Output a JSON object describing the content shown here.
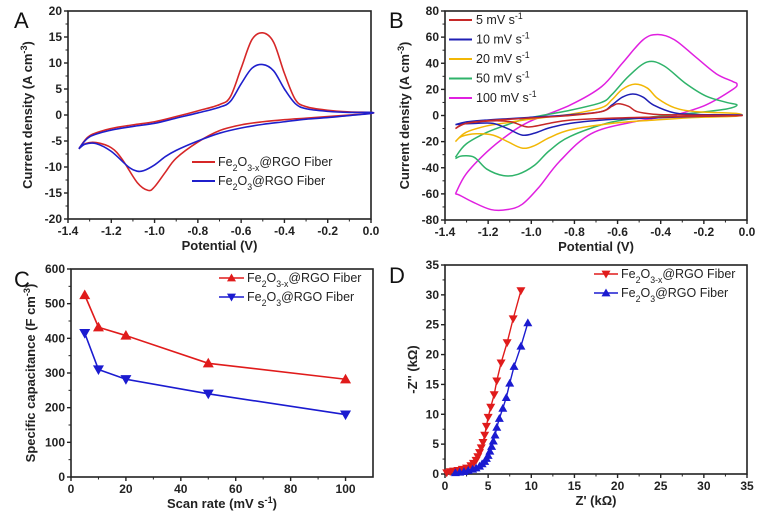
{
  "chart_data": [
    {
      "panel": "A",
      "type": "line",
      "title": "",
      "xlabel": "Potential (V)",
      "ylabel": "Current density (A cm^-3)",
      "xlim": [
        -1.4,
        0.0
      ],
      "ylim": [
        -20,
        20
      ],
      "xticks": [
        -1.4,
        -1.2,
        -1.0,
        -0.8,
        -0.6,
        -0.4,
        -0.2,
        0.0
      ],
      "xtick_labels": [
        "-1.4",
        "-1.2",
        "-1.0",
        "-0.8",
        "-0.6",
        "-0.4",
        "-0.2",
        "0.0"
      ],
      "yticks": [
        -20,
        -15,
        -10,
        -5,
        0,
        5,
        10,
        15,
        20
      ],
      "ytick_labels": [
        "-20",
        "-15",
        "-10",
        "-5",
        "0",
        "5",
        "10",
        "15",
        "20"
      ],
      "legend": "right-middle",
      "series": [
        {
          "name": "Fe2O3-x@RGO Fiber",
          "color": "#d62728",
          "anodic": {
            "x": [
              -1.35,
              -1.3,
              -1.2,
              -1.1,
              -1.0,
              -0.9,
              -0.8,
              -0.7,
              -0.65,
              -0.6,
              -0.55,
              -0.5,
              -0.45,
              -0.4,
              -0.35,
              -0.3,
              -0.2,
              -0.1,
              0.0
            ],
            "y": [
              -6.5,
              -4.0,
              -2.6,
              -1.9,
              -1.3,
              -0.3,
              0.8,
              2.0,
              3.5,
              9.0,
              14.5,
              15.8,
              14.0,
              8.0,
              3.0,
              1.6,
              0.9,
              0.6,
              0.5
            ]
          },
          "cathodic": {
            "x": [
              0.0,
              -0.1,
              -0.2,
              -0.3,
              -0.4,
              -0.5,
              -0.6,
              -0.7,
              -0.8,
              -0.9,
              -0.95,
              -1.0,
              -1.03,
              -1.08,
              -1.15,
              -1.2,
              -1.27,
              -1.32,
              -1.35
            ],
            "y": [
              0.3,
              0.0,
              -0.3,
              -0.6,
              -0.9,
              -1.3,
              -1.9,
              -3.0,
              -5.2,
              -8.3,
              -11.0,
              -13.8,
              -14.5,
              -13.0,
              -8.5,
              -6.3,
              -5.3,
              -5.5,
              -6.5
            ]
          }
        },
        {
          "name": "Fe2O3@RGO Fiber",
          "color": "#1f1fcc",
          "anodic": {
            "x": [
              -1.35,
              -1.3,
              -1.2,
              -1.1,
              -1.0,
              -0.9,
              -0.8,
              -0.7,
              -0.65,
              -0.6,
              -0.55,
              -0.5,
              -0.45,
              -0.4,
              -0.35,
              -0.3,
              -0.2,
              -0.1,
              0.0
            ],
            "y": [
              -6.5,
              -4.2,
              -2.9,
              -2.2,
              -1.6,
              -0.6,
              0.4,
              1.5,
              2.6,
              6.0,
              9.0,
              9.7,
              8.5,
              5.0,
              2.2,
              1.2,
              0.7,
              0.5,
              0.5
            ]
          },
          "cathodic": {
            "x": [
              0.0,
              -0.1,
              -0.2,
              -0.3,
              -0.4,
              -0.5,
              -0.6,
              -0.7,
              -0.8,
              -0.9,
              -0.95,
              -1.0,
              -1.05,
              -1.08,
              -1.12,
              -1.2,
              -1.27,
              -1.32,
              -1.35
            ],
            "y": [
              0.3,
              -0.1,
              -0.5,
              -0.8,
              -1.3,
              -1.8,
              -2.5,
              -3.5,
              -5.0,
              -6.8,
              -8.0,
              -9.6,
              -10.7,
              -10.8,
              -10.0,
              -7.0,
              -5.5,
              -5.6,
              -6.5
            ]
          }
        }
      ]
    },
    {
      "panel": "B",
      "type": "line",
      "title": "",
      "xlabel": "Potential (V)",
      "ylabel": "Current density (A cm^-3)",
      "xlim": [
        -1.4,
        0.0
      ],
      "ylim": [
        -80,
        80
      ],
      "xticks": [
        -1.4,
        -1.2,
        -1.0,
        -0.8,
        -0.6,
        -0.4,
        -0.2,
        0.0
      ],
      "xtick_labels": [
        "-1.4",
        "-1.2",
        "-1.0",
        "-0.8",
        "-0.6",
        "-0.4",
        "-0.2",
        "0.0"
      ],
      "yticks": [
        -80,
        -60,
        -40,
        -20,
        0,
        20,
        40,
        60,
        80
      ],
      "ytick_labels": [
        "-80",
        "-60",
        "-40",
        "-20",
        "0",
        "20",
        "40",
        "60",
        "80"
      ],
      "legend": "top-left",
      "series": [
        {
          "name": "5 mV s-1",
          "color": "#c62828",
          "anodic": {
            "x": [
              -1.35,
              -1.3,
              -1.2,
              -1.1,
              -1.0,
              -0.8,
              -0.65,
              -0.6,
              -0.57,
              -0.52,
              -0.48,
              -0.4,
              -0.3,
              -0.2,
              0.0
            ],
            "y": [
              -10,
              -6,
              -4,
              -3,
              -2,
              0,
              3,
              7,
              9,
              7,
              3,
              1,
              0.5,
              0.2,
              0
            ]
          },
          "cathodic": {
            "x": [
              0.0,
              -0.2,
              -0.4,
              -0.6,
              -0.8,
              -0.9,
              -0.98,
              -1.02,
              -1.08,
              -1.15,
              -1.25,
              -1.32,
              -1.35
            ],
            "y": [
              -0.2,
              -0.6,
              -1.2,
              -2,
              -3.5,
              -6,
              -8.5,
              -8.3,
              -5,
              -4,
              -5,
              -7,
              -10
            ]
          }
        },
        {
          "name": "10 mV s-1",
          "color": "#1f1fb4",
          "anodic": {
            "x": [
              -1.35,
              -1.3,
              -1.2,
              -1.1,
              -1.0,
              -0.8,
              -0.65,
              -0.6,
              -0.55,
              -0.5,
              -0.45,
              -0.4,
              -0.3,
              -0.2,
              0.0
            ],
            "y": [
              -7,
              -5,
              -3.5,
              -2.5,
              -1.5,
              0.5,
              3,
              8,
              14,
              16.5,
              14,
              8,
              2,
              0.8,
              0.5
            ]
          },
          "cathodic": {
            "x": [
              0.0,
              -0.2,
              -0.4,
              -0.6,
              -0.8,
              -0.9,
              -0.97,
              -1.03,
              -1.1,
              -1.17,
              -1.25,
              -1.32,
              -1.35
            ],
            "y": [
              0,
              -0.8,
              -1.8,
              -3,
              -6,
              -9.5,
              -13.5,
              -15,
              -10,
              -6,
              -6,
              -6.5,
              -7
            ]
          }
        },
        {
          "name": "20 mV s-1",
          "color": "#f2b705",
          "anodic": {
            "x": [
              -1.35,
              -1.3,
              -1.2,
              -1.1,
              -1.0,
              -0.8,
              -0.65,
              -0.6,
              -0.55,
              -0.49,
              -0.43,
              -0.38,
              -0.3,
              -0.2,
              0.0
            ],
            "y": [
              -20,
              -13,
              -8,
              -5.5,
              -3,
              1,
              6,
              12,
              20,
              24,
              21,
              13,
              6,
              3,
              1.5
            ]
          },
          "cathodic": {
            "x": [
              0.0,
              -0.2,
              -0.4,
              -0.6,
              -0.8,
              -0.9,
              -0.97,
              -1.03,
              -1.1,
              -1.17,
              -1.25,
              -1.32,
              -1.35
            ],
            "y": [
              -0.5,
              -1.5,
              -3.5,
              -6,
              -11,
              -17,
              -23,
              -25,
              -20,
              -15,
              -14,
              -16,
              -20
            ]
          }
        },
        {
          "name": "50 mV s-1",
          "color": "#2fb36a",
          "anodic": {
            "x": [
              -1.35,
              -1.3,
              -1.2,
              -1.1,
              -1.0,
              -0.8,
              -0.65,
              -0.6,
              -0.52,
              -0.43,
              -0.35,
              -0.25,
              -0.15,
              -0.05,
              0.0,
              -0.05,
              -0.2
            ],
            "y": [
              -32,
              -22,
              -13,
              -7,
              -2,
              4,
              10,
              16,
              30,
              41,
              38,
              25,
              15,
              10,
              8,
              5,
              2
            ]
          },
          "cathodic": {
            "x": [
              -0.2,
              -0.4,
              -0.6,
              -0.8,
              -0.9,
              -0.97,
              -1.05,
              -1.12,
              -1.2,
              -1.26,
              -1.32,
              -1.35
            ],
            "y": [
              2,
              -1,
              -5,
              -16,
              -27,
              -38,
              -45,
              -46,
              -41,
              -32,
              -31,
              -33
            ]
          }
        },
        {
          "name": "100 mV s-1",
          "color": "#e020e0",
          "anodic": {
            "x": [
              -1.35,
              -1.3,
              -1.2,
              -1.1,
              -1.0,
              -0.8,
              -0.65,
              -0.55,
              -0.45,
              -0.38,
              -0.3,
              -0.2,
              -0.1,
              -0.02,
              0.0,
              -0.02,
              -0.15,
              -0.3
            ],
            "y": [
              -60,
              -45,
              -28,
              -15,
              -5,
              8,
              22,
              40,
              58,
              62,
              58,
              45,
              32,
              26,
              24,
              20,
              8,
              0
            ]
          },
          "cathodic": {
            "x": [
              -0.3,
              -0.5,
              -0.7,
              -0.85,
              -0.95,
              -1.03,
              -1.1,
              -1.18,
              -1.27,
              -1.33,
              -1.35
            ],
            "y": [
              0,
              -5,
              -14,
              -35,
              -55,
              -68,
              -72,
              -72,
              -66,
              -61,
              -60
            ]
          }
        }
      ]
    },
    {
      "panel": "C",
      "type": "line",
      "title": "",
      "xlabel": "Scan rate (mV s^-1)",
      "ylabel": "Specific capacitance (F cm^-3)",
      "xlim": [
        0,
        110
      ],
      "ylim": [
        0,
        600
      ],
      "xticks": [
        0,
        20,
        40,
        60,
        80,
        100
      ],
      "xtick_labels": [
        "0",
        "20",
        "40",
        "60",
        "80",
        "100"
      ],
      "yticks": [
        0,
        100,
        200,
        300,
        400,
        500,
        600
      ],
      "ytick_labels": [
        "0",
        "100",
        "200",
        "300",
        "400",
        "500",
        "600"
      ],
      "legend": "top-right",
      "x": [
        5,
        10,
        20,
        50,
        100
      ],
      "series": [
        {
          "name": "Fe2O3-x@RGO Fiber",
          "color": "#e01b1b",
          "marker": "triangle-up",
          "values": [
            525,
            432,
            408,
            328,
            282
          ]
        },
        {
          "name": "Fe2O3@RGO Fiber",
          "color": "#1b1bd0",
          "marker": "triangle-down",
          "values": [
            415,
            310,
            282,
            240,
            180
          ]
        }
      ]
    },
    {
      "panel": "D",
      "type": "scatter",
      "title": "",
      "xlabel": "Z' (kΩ)",
      "ylabel": "-Z'' (kΩ)",
      "xlim": [
        0,
        35
      ],
      "ylim": [
        0,
        35
      ],
      "xticks": [
        0,
        5,
        10,
        15,
        20,
        25,
        30,
        35
      ],
      "xtick_labels": [
        "0",
        "5",
        "10",
        "15",
        "20",
        "25",
        "30",
        "35"
      ],
      "yticks": [
        0,
        5,
        10,
        15,
        20,
        25,
        30,
        35
      ],
      "ytick_labels": [
        "0",
        "5",
        "10",
        "15",
        "20",
        "25",
        "30",
        "35"
      ],
      "legend": "top-right",
      "series": [
        {
          "name": "Fe2O3-x@RGO Fiber",
          "color": "#e01b1b",
          "marker": "triangle-down",
          "x": [
            0.2,
            0.6,
            1.0,
            1.5,
            2.0,
            2.5,
            3.0,
            3.3,
            3.6,
            3.8,
            4.0,
            4.2,
            4.4,
            4.6,
            4.8,
            5.0,
            5.3,
            5.7,
            6.0,
            6.5,
            7.2,
            7.9,
            8.8
          ],
          "y": [
            0.2,
            0.4,
            0.5,
            0.6,
            0.8,
            1.0,
            1.4,
            1.8,
            2.3,
            2.9,
            3.6,
            4.4,
            5.3,
            6.5,
            8.0,
            9.5,
            11.2,
            13.3,
            15.6,
            18.6,
            22.0,
            26.0,
            30.7
          ]
        },
        {
          "name": "Fe2O3@RGO Fiber",
          "color": "#1b1bd0",
          "marker": "triangle-up",
          "x": [
            1.2,
            1.7,
            2.2,
            2.7,
            3.2,
            3.6,
            4.0,
            4.3,
            4.6,
            4.8,
            5.0,
            5.2,
            5.4,
            5.6,
            5.8,
            6.0,
            6.3,
            6.7,
            7.1,
            7.5,
            8.0,
            8.8,
            9.6
          ],
          "y": [
            0.2,
            0.3,
            0.4,
            0.6,
            0.8,
            1.0,
            1.3,
            1.7,
            2.1,
            2.6,
            3.1,
            3.8,
            4.6,
            5.5,
            6.5,
            7.8,
            9.3,
            11.0,
            12.8,
            15.2,
            18.0,
            21.4,
            25.3
          ]
        }
      ]
    }
  ],
  "labels": {
    "panel_A": "A",
    "panel_B": "B",
    "panel_C": "C",
    "panel_D": "D",
    "legend_A": [
      "Fe2O3-x@RGO Fiber",
      "Fe2O3@RGO Fiber"
    ],
    "legend_B": [
      "5 mV s-1",
      "10 mV s-1",
      "20 mV s-1",
      "50 mV s-1",
      "100 mV s-1"
    ],
    "legend_C": [
      "Fe2O3-x@RGO Fiber",
      "Fe2O3@RGO Fiber"
    ],
    "legend_D": [
      "Fe2O3-x@RGO Fiber",
      "Fe2O3@RGO Fiber"
    ]
  }
}
